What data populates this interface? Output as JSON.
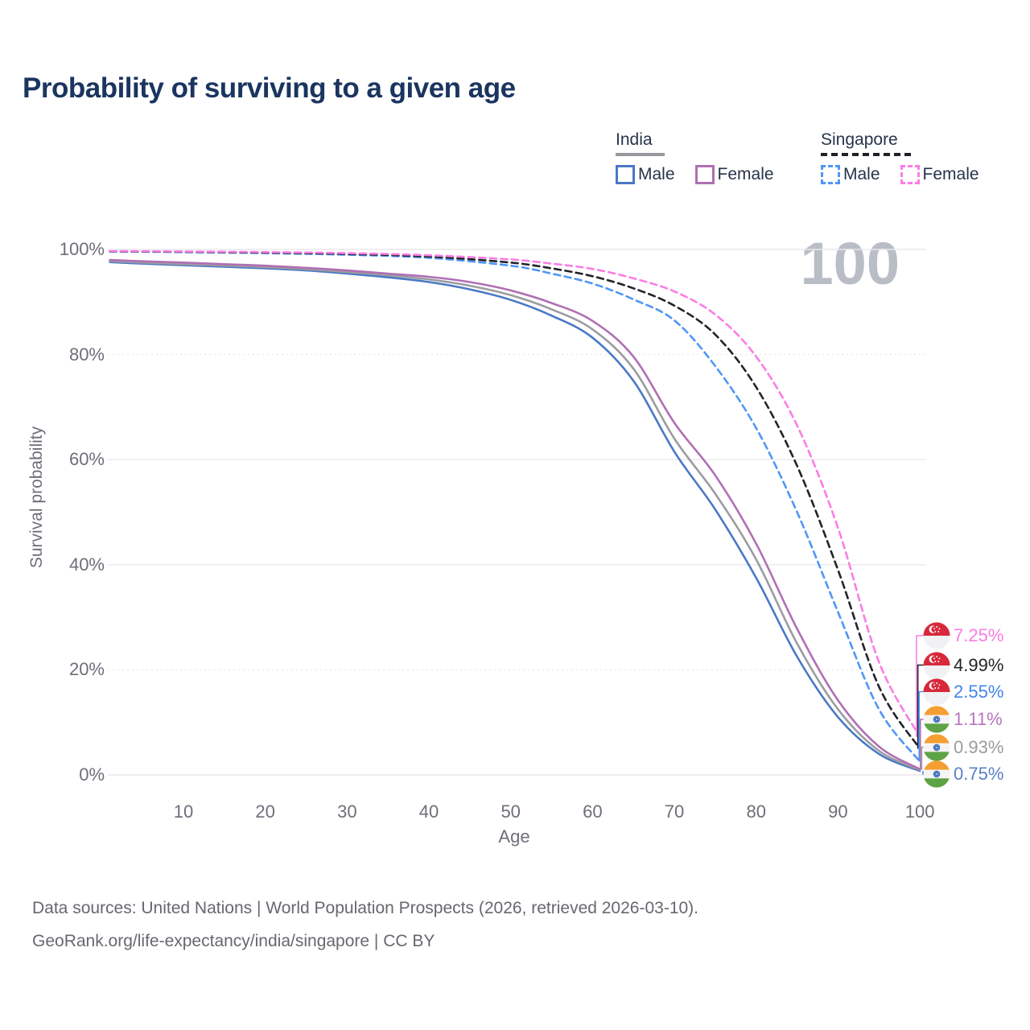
{
  "title": "Probability of surviving to a given age",
  "watermark_age": "100",
  "legend": {
    "groups": [
      {
        "label": "India",
        "underline_style": "solid",
        "underline_color": "#97979d",
        "underline_width": 61,
        "items": [
          {
            "label": "Male",
            "color": "#4a79c5",
            "dashed": false
          },
          {
            "label": "Female",
            "color": "#b06fb4",
            "dashed": false
          }
        ]
      },
      {
        "label": "Singapore",
        "underline_style": "dashed",
        "underline_color": "#1f2126",
        "underline_width": 114,
        "items": [
          {
            "label": "Male",
            "color": "#4f97f6",
            "dashed": true
          },
          {
            "label": "Female",
            "color": "#fb7de4",
            "dashed": true
          }
        ]
      }
    ]
  },
  "chart_data": {
    "type": "line",
    "title": "Probability of surviving to a given age",
    "xlabel": "Age",
    "ylabel": "Survival probability",
    "xlim": [
      0,
      105
    ],
    "ylim": [
      0,
      100
    ],
    "grid": true,
    "legend_position": "top-right",
    "x_ticks": [
      10,
      20,
      30,
      40,
      50,
      60,
      70,
      80,
      90,
      100
    ],
    "y_ticks": [
      {
        "value": 0,
        "label": "0%"
      },
      {
        "value": 20,
        "label": "20%"
      },
      {
        "value": 40,
        "label": "40%"
      },
      {
        "value": 60,
        "label": "60%"
      },
      {
        "value": 80,
        "label": "80%"
      },
      {
        "value": 100,
        "label": "100%"
      }
    ],
    "series": [
      {
        "name": "India Male",
        "color": "#4a79c5",
        "dash": "solid",
        "end_value_label": "0.75%",
        "points": [
          [
            1,
            97.6
          ],
          [
            5,
            97.3
          ],
          [
            10,
            97.0
          ],
          [
            15,
            96.7
          ],
          [
            20,
            96.4
          ],
          [
            25,
            96.0
          ],
          [
            30,
            95.4
          ],
          [
            35,
            94.7
          ],
          [
            40,
            93.8
          ],
          [
            45,
            92.4
          ],
          [
            50,
            90.4
          ],
          [
            55,
            87.4
          ],
          [
            60,
            83.2
          ],
          [
            65,
            75.0
          ],
          [
            70,
            61.5
          ],
          [
            75,
            50.5
          ],
          [
            80,
            37.5
          ],
          [
            85,
            22.5
          ],
          [
            90,
            11.0
          ],
          [
            95,
            4.0
          ],
          [
            100,
            0.75
          ]
        ]
      },
      {
        "name": "India Both sexes",
        "color": "#9c9ca2",
        "dash": "solid",
        "end_value_label": "0.93%",
        "points": [
          [
            1,
            97.8
          ],
          [
            5,
            97.5
          ],
          [
            10,
            97.2
          ],
          [
            15,
            96.95
          ],
          [
            20,
            96.65
          ],
          [
            25,
            96.25
          ],
          [
            30,
            95.7
          ],
          [
            35,
            95.1
          ],
          [
            40,
            94.3
          ],
          [
            45,
            93.1
          ],
          [
            50,
            91.3
          ],
          [
            55,
            88.6
          ],
          [
            60,
            84.8
          ],
          [
            65,
            77.3
          ],
          [
            70,
            64.0
          ],
          [
            75,
            53.5
          ],
          [
            80,
            41.0
          ],
          [
            85,
            25.0
          ],
          [
            90,
            12.5
          ],
          [
            95,
            4.6
          ],
          [
            100,
            0.93
          ]
        ]
      },
      {
        "name": "India Female",
        "color": "#b06fb4",
        "dash": "solid",
        "end_value_label": "1.11%",
        "points": [
          [
            1,
            98.0
          ],
          [
            5,
            97.75
          ],
          [
            10,
            97.5
          ],
          [
            15,
            97.2
          ],
          [
            20,
            96.9
          ],
          [
            25,
            96.5
          ],
          [
            30,
            96.0
          ],
          [
            35,
            95.4
          ],
          [
            40,
            94.8
          ],
          [
            45,
            93.8
          ],
          [
            50,
            92.2
          ],
          [
            55,
            89.8
          ],
          [
            60,
            86.4
          ],
          [
            65,
            79.6
          ],
          [
            70,
            67.0
          ],
          [
            75,
            57.0
          ],
          [
            80,
            44.0
          ],
          [
            85,
            27.8
          ],
          [
            90,
            14.2
          ],
          [
            95,
            5.4
          ],
          [
            100,
            1.11
          ]
        ]
      },
      {
        "name": "Singapore Male",
        "color": "#4f97f6",
        "dash": "dashed",
        "end_value_label": "2.55%",
        "points": [
          [
            1,
            99.6
          ],
          [
            10,
            99.5
          ],
          [
            20,
            99.3
          ],
          [
            30,
            99.0
          ],
          [
            40,
            98.4
          ],
          [
            50,
            96.9
          ],
          [
            55,
            95.4
          ],
          [
            60,
            93.5
          ],
          [
            65,
            90.5
          ],
          [
            70,
            86.5
          ],
          [
            75,
            77.8
          ],
          [
            80,
            66.0
          ],
          [
            85,
            50.0
          ],
          [
            90,
            31.0
          ],
          [
            95,
            12.5
          ],
          [
            100,
            2.55
          ]
        ]
      },
      {
        "name": "Singapore Both sexes",
        "color": "#232329",
        "dash": "dashed",
        "end_value_label": "4.99%",
        "points": [
          [
            1,
            99.65
          ],
          [
            10,
            99.55
          ],
          [
            20,
            99.4
          ],
          [
            30,
            99.15
          ],
          [
            40,
            98.65
          ],
          [
            50,
            97.5
          ],
          [
            55,
            96.4
          ],
          [
            60,
            94.9
          ],
          [
            65,
            92.6
          ],
          [
            70,
            89.3
          ],
          [
            75,
            83.8
          ],
          [
            80,
            73.8
          ],
          [
            85,
            58.8
          ],
          [
            90,
            39.0
          ],
          [
            95,
            16.8
          ],
          [
            100,
            4.99
          ]
        ]
      },
      {
        "name": "Singapore Female",
        "color": "#fb7de4",
        "dash": "dashed",
        "end_value_label": "7.25%",
        "points": [
          [
            1,
            99.7
          ],
          [
            10,
            99.62
          ],
          [
            20,
            99.5
          ],
          [
            30,
            99.3
          ],
          [
            40,
            98.9
          ],
          [
            50,
            98.1
          ],
          [
            55,
            97.3
          ],
          [
            60,
            96.3
          ],
          [
            65,
            94.5
          ],
          [
            70,
            92.0
          ],
          [
            75,
            87.6
          ],
          [
            80,
            79.6
          ],
          [
            85,
            66.5
          ],
          [
            90,
            47.0
          ],
          [
            95,
            21.5
          ],
          [
            100,
            7.25
          ]
        ]
      }
    ]
  },
  "end_labels": [
    {
      "series": "Singapore Female",
      "flag": "singapore-flag-icon",
      "label": "7.25%",
      "color": "#fb7de4"
    },
    {
      "series": "Singapore Both sexes",
      "flag": "singapore-flag-icon",
      "label": "4.99%",
      "color": "#232329"
    },
    {
      "series": "Singapore Male",
      "flag": "singapore-flag-icon",
      "label": "2.55%",
      "color": "#4285e8"
    },
    {
      "series": "India Female",
      "flag": "india-flag-icon",
      "label": "1.11%",
      "color": "#b574bb"
    },
    {
      "series": "India Both sexes",
      "flag": "india-flag-icon",
      "label": "0.93%",
      "color": "#9b9ba0"
    },
    {
      "series": "India Male",
      "flag": "india-flag-icon",
      "label": "0.75%",
      "color": "#5b80c4"
    }
  ],
  "footer": {
    "line1": "Data sources: United Nations | World Population Prospects (2026, retrieved 2026-03-10).",
    "line2": "GeoRank.org/life-expectancy/india/singapore | CC BY"
  }
}
